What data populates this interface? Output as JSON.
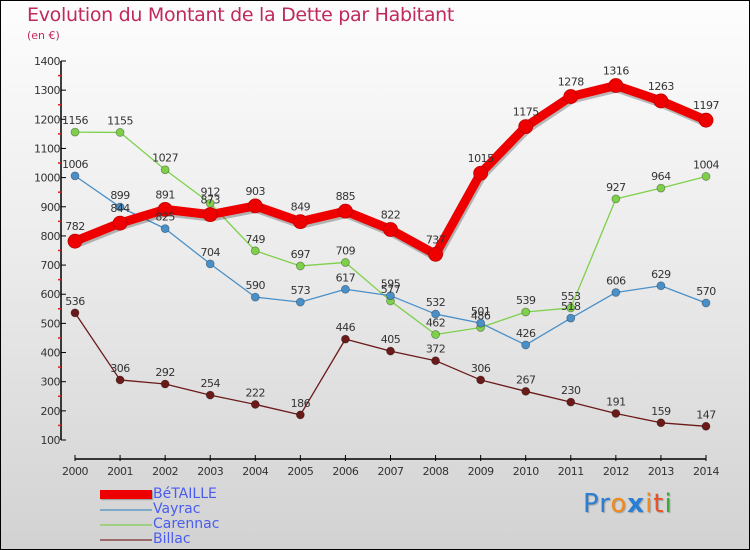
{
  "chart_data": {
    "type": "line",
    "title": "Evolution du Montant de la Dette par Habitant",
    "subtitle": "(en €)",
    "xlabel": "",
    "ylabel": "",
    "x": [
      "2000",
      "2001",
      "2002",
      "2003",
      "2004",
      "2005",
      "2006",
      "2007",
      "2008",
      "2009",
      "2010",
      "2011",
      "2012",
      "2013",
      "2014"
    ],
    "y_ticks": [
      "100",
      "200",
      "300",
      "400",
      "500",
      "600",
      "700",
      "800",
      "900",
      "1000",
      "1100",
      "1200",
      "1300",
      "1400"
    ],
    "ylim": [
      100,
      1400
    ],
    "grid": false,
    "legend_position": "bottom-left",
    "series": [
      {
        "name": "BéTAILLE",
        "color": "#ee0000",
        "values": [
          782,
          844,
          891,
          873,
          903,
          849,
          885,
          822,
          737,
          1015,
          1175,
          1278,
          1316,
          1263,
          1197
        ]
      },
      {
        "name": "Vayrac",
        "color": "#4a90c8",
        "values": [
          1006,
          899,
          825,
          704,
          590,
          573,
          617,
          595,
          532,
          501,
          426,
          518,
          606,
          629,
          570
        ]
      },
      {
        "name": "Carennac",
        "color": "#7ed04a",
        "values": [
          1156,
          1155,
          1027,
          912,
          749,
          697,
          709,
          577,
          462,
          486,
          539,
          553,
          927,
          964,
          1004
        ]
      },
      {
        "name": "Billac",
        "color": "#6b1a1a",
        "values": [
          536,
          306,
          292,
          254,
          222,
          186,
          446,
          405,
          372,
          306,
          267,
          230,
          191,
          159,
          147
        ]
      }
    ]
  },
  "legend": {
    "items": [
      {
        "label": "BéTAILLE",
        "color": "#ee0000"
      },
      {
        "label": "Vayrac",
        "color": "#7fa9c9"
      },
      {
        "label": "Carennac",
        "color": "#9fcf80"
      },
      {
        "label": "Billac",
        "color": "#9a6a6a"
      }
    ]
  },
  "logo": {
    "letters": [
      {
        "ch": "P",
        "color": "#2a7fd4"
      },
      {
        "ch": "r",
        "color": "#2a7fd4"
      },
      {
        "ch": "o",
        "color": "#f08a1c"
      },
      {
        "ch": "x",
        "color": "#2a7fd4"
      },
      {
        "ch": "i",
        "color": "#f08a1c"
      },
      {
        "ch": "t",
        "color": "#e8522a"
      },
      {
        "ch": "i",
        "color": "#3aa83a"
      }
    ]
  }
}
